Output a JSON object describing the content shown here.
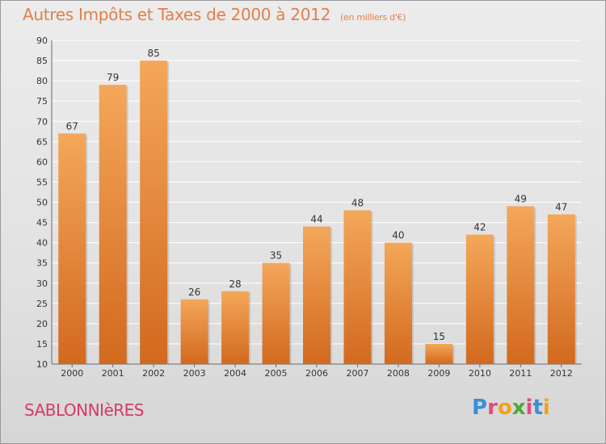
{
  "header": {
    "title": "Autres Impôts et Taxes de 2000 à 2012",
    "subtitle": "(en milliers d'€)"
  },
  "footer": {
    "commune": "SABLONNIèRES",
    "logo_text": "Proxiti",
    "logo_letters": [
      {
        "ch": "P",
        "color": "#3a8fd8"
      },
      {
        "ch": "r",
        "color": "#e34b7a"
      },
      {
        "ch": "o",
        "color": "#f4a21a"
      },
      {
        "ch": "x",
        "color": "#4caa3a"
      },
      {
        "ch": "i",
        "color": "#e34b7a"
      },
      {
        "ch": "t",
        "color": "#3a8fd8"
      },
      {
        "ch": "i",
        "color": "#f4a21a"
      }
    ]
  },
  "colors": {
    "title": "#e0804a",
    "commune": "#d63a66",
    "bar_light": "#f4a75a",
    "bar_dark": "#d2691e",
    "grid": "#ffffff",
    "axis_text": "#333333"
  },
  "chart_data": {
    "type": "bar",
    "title": "Autres Impôts et Taxes de 2000 à 2012",
    "subtitle": "(en milliers d'€)",
    "categories": [
      "2000",
      "2001",
      "2002",
      "2003",
      "2004",
      "2005",
      "2006",
      "2007",
      "2008",
      "2009",
      "2010",
      "2011",
      "2012"
    ],
    "values": [
      67,
      79,
      85,
      26,
      28,
      35,
      44,
      48,
      40,
      15,
      42,
      49,
      47
    ],
    "ylim": [
      10,
      90
    ],
    "yticks": [
      10,
      15,
      20,
      25,
      30,
      35,
      40,
      45,
      50,
      55,
      60,
      65,
      70,
      75,
      80,
      85,
      90
    ],
    "grid": true,
    "data_labels": true,
    "xlabel": "",
    "ylabel": ""
  }
}
